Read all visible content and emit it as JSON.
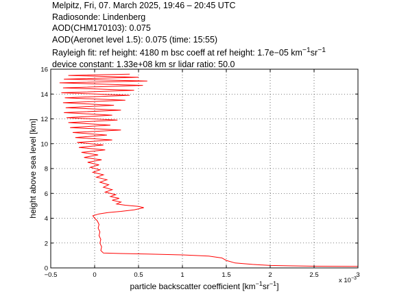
{
  "header": {
    "line1": "Melpitz, Fri, 07. March 2025, 19:46 – 20:45 UTC",
    "line2": "Radiosonde: Lindenberg",
    "line3": "AOD(CHM170103): 0.075",
    "line4": "AOD(Aeronet level 1.5): 0.075   (time: 15:55)",
    "line5_a": "Rayleigh fit:     ref height: 4180 m     bsc coeff at ref height: 1.7e−05 km",
    "line5_unit_sup1": "−1",
    "line5_unit_sr": "sr",
    "line5_unit_sup2": "−1",
    "line6": "device constant: 1.33e+08 km sr     lidar ratio: 50.0"
  },
  "chart_data": {
    "type": "line",
    "xlabel_main": "particle backscatter coefficient [km",
    "xlabel_sup1": "−1",
    "xlabel_sr": "sr",
    "xlabel_sup2": "−1",
    "xlabel_end": "]",
    "x_multiplier": "x 10",
    "x_multiplier_exp": "−3",
    "ylabel": "height above sea level [km]",
    "xlim": [
      -0.5,
      3
    ],
    "ylim": [
      0,
      16
    ],
    "xticks": [
      -0.5,
      0,
      0.5,
      1,
      1.5,
      2,
      2.5,
      3
    ],
    "xtick_labels": [
      "−0.5",
      "0",
      "0.5",
      "1",
      "1.5",
      "2",
      "2.5",
      "3"
    ],
    "yticks": [
      0,
      2,
      4,
      6,
      8,
      10,
      12,
      14,
      16
    ],
    "ytick_labels": [
      "0",
      "2",
      "4",
      "6",
      "8",
      "10",
      "12",
      "14",
      "16"
    ],
    "grid": true,
    "series": [
      {
        "color": "#ff0000",
        "points": [
          [
            3.0,
            0.12
          ],
          [
            2.5,
            0.14
          ],
          [
            2.2,
            0.17
          ],
          [
            2.0,
            0.2
          ],
          [
            1.8,
            0.28
          ],
          [
            1.6,
            0.4
          ],
          [
            1.5,
            0.6
          ],
          [
            1.45,
            0.8
          ],
          [
            1.3,
            0.95
          ],
          [
            1.0,
            1.05
          ],
          [
            0.6,
            1.12
          ],
          [
            0.3,
            1.16
          ],
          [
            0.1,
            1.2
          ],
          [
            0.07,
            1.4
          ],
          [
            0.08,
            1.7
          ],
          [
            0.06,
            2.0
          ],
          [
            0.07,
            2.3
          ],
          [
            0.05,
            2.6
          ],
          [
            0.06,
            2.9
          ],
          [
            0.04,
            3.2
          ],
          [
            0.05,
            3.5
          ],
          [
            0.03,
            3.8
          ],
          [
            0.0,
            4.0
          ],
          [
            -0.02,
            4.2
          ],
          [
            0.05,
            4.35
          ],
          [
            0.15,
            4.45
          ],
          [
            0.3,
            4.55
          ],
          [
            0.45,
            4.68
          ],
          [
            0.56,
            4.85
          ],
          [
            0.5,
            4.95
          ],
          [
            0.35,
            5.05
          ],
          [
            0.25,
            5.15
          ],
          [
            0.3,
            5.3
          ],
          [
            0.2,
            5.45
          ],
          [
            0.28,
            5.6
          ],
          [
            0.18,
            5.75
          ],
          [
            0.24,
            5.9
          ],
          [
            0.12,
            6.1
          ],
          [
            0.2,
            6.3
          ],
          [
            0.1,
            6.5
          ],
          [
            0.16,
            6.7
          ],
          [
            0.06,
            6.9
          ],
          [
            0.14,
            7.1
          ],
          [
            0.02,
            7.3
          ],
          [
            0.1,
            7.5
          ],
          [
            -0.02,
            7.7
          ],
          [
            0.06,
            7.9
          ],
          [
            -0.05,
            8.1
          ],
          [
            0.05,
            8.3
          ],
          [
            -0.08,
            8.5
          ],
          [
            0.08,
            8.7
          ],
          [
            -0.12,
            8.9
          ],
          [
            0.04,
            9.1
          ],
          [
            -0.15,
            9.3
          ],
          [
            0.12,
            9.5
          ],
          [
            -0.18,
            9.7
          ],
          [
            0.1,
            9.9
          ],
          [
            -0.2,
            10.1
          ],
          [
            0.2,
            10.3
          ],
          [
            -0.22,
            10.5
          ],
          [
            0.14,
            10.7
          ],
          [
            -0.25,
            10.9
          ],
          [
            0.3,
            11.1
          ],
          [
            -0.28,
            11.3
          ],
          [
            0.18,
            11.5
          ],
          [
            -0.3,
            11.7
          ],
          [
            0.26,
            11.9
          ],
          [
            -0.32,
            12.1
          ],
          [
            0.2,
            12.3
          ],
          [
            -0.35,
            12.5
          ],
          [
            0.3,
            12.7
          ],
          [
            -0.33,
            12.9
          ],
          [
            0.22,
            13.1
          ],
          [
            -0.36,
            13.3
          ],
          [
            0.35,
            13.5
          ],
          [
            -0.34,
            13.7
          ],
          [
            0.4,
            13.9
          ],
          [
            -0.38,
            14.1
          ],
          [
            0.45,
            14.3
          ],
          [
            -0.36,
            14.5
          ],
          [
            0.55,
            14.7
          ],
          [
            -0.4,
            14.9
          ],
          [
            0.6,
            15.05
          ],
          [
            -0.35,
            15.2
          ],
          [
            0.5,
            15.35
          ],
          [
            -0.3,
            15.5
          ],
          [
            0.4,
            15.6
          ]
        ]
      }
    ]
  }
}
